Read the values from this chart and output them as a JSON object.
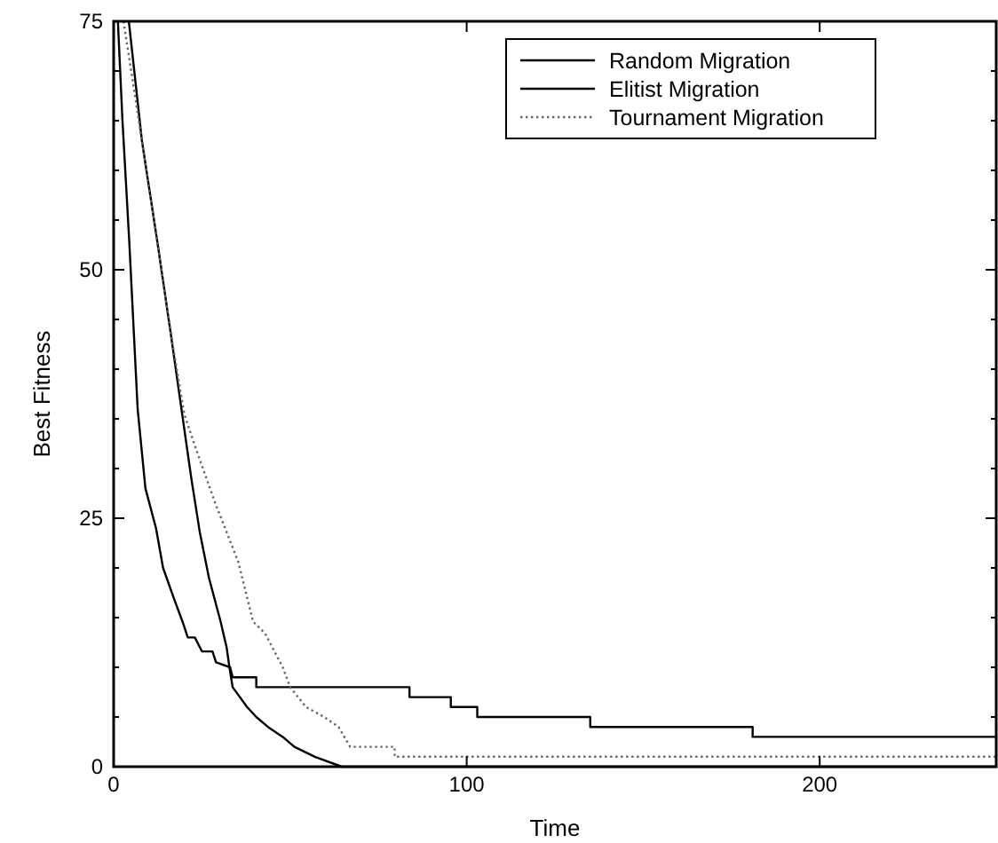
{
  "chart_data": {
    "type": "line",
    "xlabel": "Time",
    "ylabel": "Best Fitness",
    "xlim": [
      0,
      250
    ],
    "ylim": [
      0,
      75
    ],
    "xticks": [
      0,
      100,
      200
    ],
    "yticks": [
      0,
      {
        "value": 5,
        "label": null
      },
      {
        "value": 10,
        "label": null
      },
      {
        "value": 15,
        "label": null
      },
      {
        "value": 20,
        "label": null
      },
      25,
      {
        "value": 30,
        "label": null
      },
      {
        "value": 35,
        "label": null
      },
      {
        "value": 40,
        "label": null
      },
      {
        "value": 45,
        "label": null
      },
      50,
      {
        "value": 55,
        "label": null
      },
      {
        "value": 60,
        "label": null
      },
      {
        "value": 65,
        "label": null
      },
      {
        "value": 70,
        "label": null
      },
      75
    ],
    "legend": "top right",
    "grid": false,
    "series": [
      {
        "name": "Random Migration",
        "color": "#000000",
        "line_style": "solid",
        "x": [
          4.3,
          8,
          12.3,
          16,
          19.4,
          22,
          24.4,
          27,
          30.3,
          32,
          32.8,
          33.7,
          37.8,
          40.4,
          43.7,
          47.9,
          51.2,
          57,
          64.6,
          250
        ],
        "values": [
          75,
          63,
          53,
          44,
          35.5,
          29,
          23.6,
          19,
          14.6,
          12,
          10,
          8,
          6,
          5,
          4,
          3,
          2,
          1,
          0,
          0
        ]
      },
      {
        "name": "Elitist Migration",
        "color": "#000000",
        "line_style": "solid",
        "x": [
          1.2,
          2.5,
          4.4,
          6.8,
          9,
          12,
          14,
          17,
          19.5,
          21,
          23,
          25,
          28,
          29,
          33,
          33.7,
          40.4,
          40.4,
          83.8,
          83.8,
          95.5,
          95.5,
          103,
          103,
          135,
          135,
          181,
          181,
          250
        ],
        "values": [
          75,
          65,
          53,
          36,
          28,
          24,
          20,
          17,
          14.6,
          13,
          13,
          11.6,
          11.6,
          10.5,
          10,
          9,
          9,
          8,
          8,
          7,
          7,
          6,
          6,
          5,
          5,
          4,
          4,
          3,
          3
        ]
      },
      {
        "name": "Tournament Migration",
        "color": "#666666",
        "line_style": "dotted",
        "x": [
          2.8,
          8,
          12.3,
          16,
          20,
          22.8,
          28.7,
          35.3,
          39.5,
          42.9,
          47.9,
          50,
          54.5,
          59.6,
          63.7,
          67,
          79.6,
          79.6,
          250
        ],
        "values": [
          75,
          63,
          53,
          44,
          35.5,
          32.5,
          26.6,
          20.6,
          14.6,
          13.4,
          10,
          8,
          6,
          5,
          4,
          2,
          2,
          1,
          1
        ]
      }
    ]
  }
}
